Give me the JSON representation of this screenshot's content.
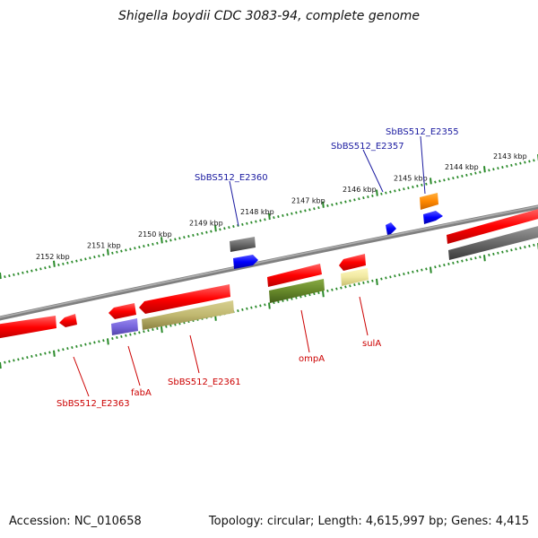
{
  "title": "Shigella boydii CDC 3083-94, complete genome",
  "footer": {
    "accession": "Accession: NC_010658",
    "topology": "Topology: circular; Length: 4,615,997 bp; Genes: 4,415"
  },
  "colors": {
    "background": "#ffffff",
    "backbone": "#808080",
    "ruler": "#2a8a2a",
    "gene_forward": "#ff0000",
    "gene_reverse": "#ff0000",
    "rna": "#707070",
    "cds_blue": "#0000ff",
    "cds_orange": "#ff8800",
    "cds_purple": "#7766dd",
    "cds_olive": "#c0b870",
    "cds_green": "#66882a",
    "cds_yellow": "#f0e8a0",
    "label_forward": "#1a1aa0",
    "label_reverse": "#cc0000"
  },
  "ruler": {
    "unit": "kbp",
    "outer_ticks": [
      "2152 kbp",
      "2151 kbp",
      "2150 kbp",
      "2149 kbp",
      "2148 kbp",
      "2147 kbp",
      "2146 kbp",
      "2145 kbp",
      "2144 kbp",
      "2143 kbp"
    ]
  },
  "labels": {
    "forward": [
      "SbBS512_E2355",
      "SbBS512_E2357",
      "SbBS512_E2360"
    ],
    "reverse": [
      "SbBS512_E2363",
      "fabA",
      "SbBS512_E2361",
      "ompA",
      "sulA"
    ]
  }
}
